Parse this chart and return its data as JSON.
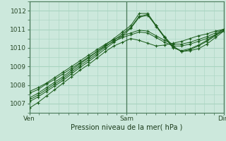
{
  "xlabel": "Pression niveau de la mer( hPa )",
  "bg_color": "#cce8dc",
  "grid_color": "#a8d4c0",
  "line_color": "#1a5c1a",
  "ylim": [
    1006.5,
    1012.5
  ],
  "yticks": [
    1007,
    1008,
    1009,
    1010,
    1011,
    1012
  ],
  "xtick_positions": [
    0,
    0.5,
    1.0
  ],
  "xtick_labels": [
    "Ven",
    "Sam",
    "Dim"
  ],
  "lines": [
    [
      1006.75,
      1007.05,
      1007.4,
      1007.75,
      1008.1,
      1008.45,
      1008.8,
      1009.1,
      1009.45,
      1009.8,
      1010.1,
      1010.3,
      1010.5,
      1010.4,
      1010.25,
      1010.1,
      1010.15,
      1010.25,
      1010.35,
      1010.5,
      1010.65,
      1010.75,
      1010.9,
      1011.0
    ],
    [
      1007.1,
      1007.35,
      1007.65,
      1007.95,
      1008.25,
      1008.6,
      1008.95,
      1009.25,
      1009.6,
      1009.95,
      1010.3,
      1010.65,
      1011.05,
      1011.65,
      1011.75,
      1011.2,
      1010.6,
      1010.1,
      1009.8,
      1009.85,
      1009.95,
      1010.2,
      1010.55,
      1010.9
    ],
    [
      1007.3,
      1007.55,
      1007.85,
      1008.15,
      1008.45,
      1008.8,
      1009.15,
      1009.45,
      1009.8,
      1010.15,
      1010.5,
      1010.85,
      1011.2,
      1011.85,
      1011.85,
      1011.2,
      1010.55,
      1010.0,
      1009.85,
      1009.95,
      1010.15,
      1010.4,
      1010.7,
      1011.0
    ],
    [
      1007.55,
      1007.75,
      1008.05,
      1008.3,
      1008.6,
      1008.9,
      1009.2,
      1009.5,
      1009.8,
      1010.1,
      1010.35,
      1010.55,
      1010.7,
      1010.85,
      1010.8,
      1010.55,
      1010.3,
      1010.1,
      1010.1,
      1010.2,
      1010.35,
      1010.5,
      1010.7,
      1010.9
    ],
    [
      1007.65,
      1007.85,
      1008.1,
      1008.4,
      1008.7,
      1009.0,
      1009.3,
      1009.6,
      1009.9,
      1010.2,
      1010.45,
      1010.65,
      1010.8,
      1010.95,
      1010.9,
      1010.65,
      1010.4,
      1010.2,
      1010.2,
      1010.3,
      1010.45,
      1010.6,
      1010.8,
      1011.0
    ],
    [
      1007.2,
      1007.45,
      1007.75,
      1008.05,
      1008.35,
      1008.7,
      1009.05,
      1009.35,
      1009.7,
      1010.05,
      1010.4,
      1010.75,
      1011.1,
      1011.7,
      1011.8,
      1011.15,
      1010.55,
      1010.05,
      1009.8,
      1009.9,
      1010.1,
      1010.35,
      1010.65,
      1010.95
    ]
  ]
}
